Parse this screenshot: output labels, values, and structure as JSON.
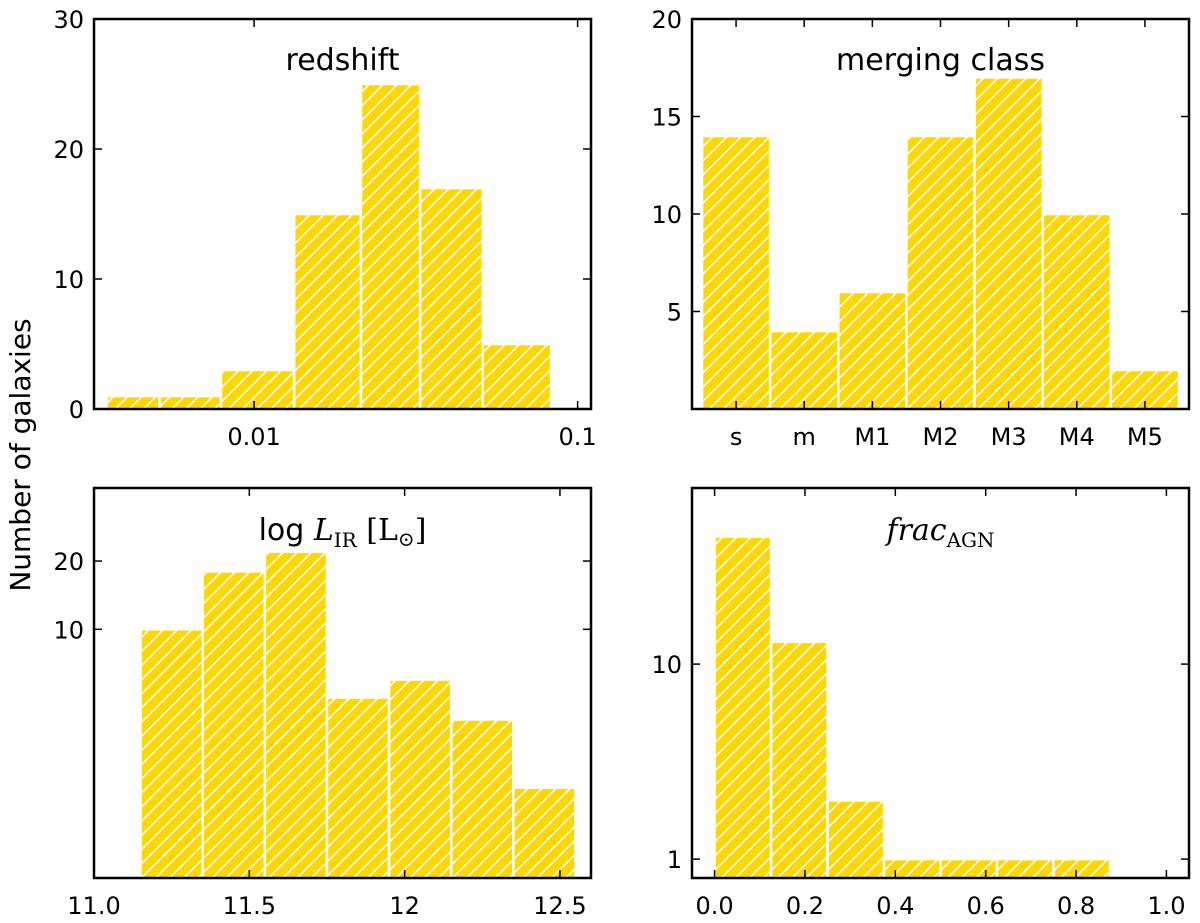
{
  "figure": {
    "ylabel": "Number of galaxies",
    "bar_color": "#FFD700",
    "hatch_color": "#FFFFFF"
  },
  "chart_data": [
    {
      "type": "bar",
      "title": "redshift",
      "xscale": "log",
      "yscale": "linear",
      "xlim": [
        0.0032,
        0.11
      ],
      "ylim": [
        0,
        30
      ],
      "bins": [
        {
          "x0": 0.0035,
          "x1": 0.0051,
          "count": 1
        },
        {
          "x0": 0.0051,
          "x1": 0.0079,
          "count": 1
        },
        {
          "x0": 0.0079,
          "x1": 0.0133,
          "count": 3
        },
        {
          "x0": 0.0133,
          "x1": 0.0214,
          "count": 15
        },
        {
          "x0": 0.0214,
          "x1": 0.0326,
          "count": 25
        },
        {
          "x0": 0.0326,
          "x1": 0.0509,
          "count": 17
        },
        {
          "x0": 0.0509,
          "x1": 0.0828,
          "count": 5
        }
      ],
      "xticks": [
        {
          "v": 0.01,
          "label": "0.01"
        },
        {
          "v": 0.1,
          "label": "0.1"
        }
      ],
      "yticks": [
        {
          "v": 0,
          "label": "0"
        },
        {
          "v": 10,
          "label": "10"
        },
        {
          "v": 20,
          "label": "20"
        },
        {
          "v": 30,
          "label": "30"
        }
      ]
    },
    {
      "type": "bar",
      "title": "merging class",
      "xscale": "categorical",
      "yscale": "linear",
      "ylim": [
        0,
        20
      ],
      "categories": [
        "s",
        "m",
        "M1",
        "M2",
        "M3",
        "M4",
        "M5"
      ],
      "values": [
        14,
        4,
        6,
        14,
        17,
        10,
        2
      ],
      "yticks": [
        {
          "v": 5,
          "label": "5"
        },
        {
          "v": 10,
          "label": "10"
        },
        {
          "v": 15,
          "label": "15"
        },
        {
          "v": 20,
          "label": "20"
        }
      ]
    },
    {
      "type": "bar",
      "title": "log L_IR [L_⊙]",
      "title_parts": {
        "prefix": "log ",
        "var": "L",
        "sub": "IR",
        "bracket_open": " [L",
        "sun": "⊙",
        "bracket_close": "]"
      },
      "xscale": "linear",
      "yscale": "log",
      "xlim": [
        11.0,
        12.6
      ],
      "ylim": [
        0.8,
        42
      ],
      "bins": [
        {
          "x0": 11.15,
          "x1": 11.35,
          "count": 10
        },
        {
          "x0": 11.35,
          "x1": 11.55,
          "count": 18
        },
        {
          "x0": 11.55,
          "x1": 11.75,
          "count": 22
        },
        {
          "x0": 11.75,
          "x1": 11.95,
          "count": 5
        },
        {
          "x0": 11.95,
          "x1": 12.15,
          "count": 6
        },
        {
          "x0": 12.15,
          "x1": 12.35,
          "count": 4
        },
        {
          "x0": 12.35,
          "x1": 12.55,
          "count": 2
        }
      ],
      "xticks": [
        {
          "v": 11.0,
          "label": "11.0"
        },
        {
          "v": 11.5,
          "label": "11.5"
        },
        {
          "v": 12,
          "label": "12"
        },
        {
          "v": 12.5,
          "label": "12.5"
        }
      ],
      "yticks": [
        {
          "v": 10,
          "label": "10"
        },
        {
          "v": 20,
          "label": "20"
        }
      ]
    },
    {
      "type": "bar",
      "title": "frac_AGN",
      "title_parts": {
        "var": "frac",
        "sub": "AGN"
      },
      "xscale": "linear",
      "yscale": "log",
      "xlim": [
        -0.05,
        1.05
      ],
      "ylim": [
        0.8,
        80
      ],
      "bins": [
        {
          "x0": 0.0,
          "x1": 0.125,
          "count": 45
        },
        {
          "x0": 0.125,
          "x1": 0.25,
          "count": 13
        },
        {
          "x0": 0.25,
          "x1": 0.375,
          "count": 2
        },
        {
          "x0": 0.375,
          "x1": 0.5,
          "count": 1
        },
        {
          "x0": 0.5,
          "x1": 0.625,
          "count": 1
        },
        {
          "x0": 0.625,
          "x1": 0.75,
          "count": 1
        },
        {
          "x0": 0.75,
          "x1": 0.875,
          "count": 1
        }
      ],
      "xticks": [
        {
          "v": 0.0,
          "label": "0.0"
        },
        {
          "v": 0.2,
          "label": "0.2"
        },
        {
          "v": 0.4,
          "label": "0.4"
        },
        {
          "v": 0.6,
          "label": "0.6"
        },
        {
          "v": 0.8,
          "label": "0.8"
        },
        {
          "v": 1.0,
          "label": "1.0"
        }
      ],
      "yticks": [
        {
          "v": 1,
          "label": "1"
        },
        {
          "v": 10,
          "label": "10"
        }
      ]
    }
  ]
}
